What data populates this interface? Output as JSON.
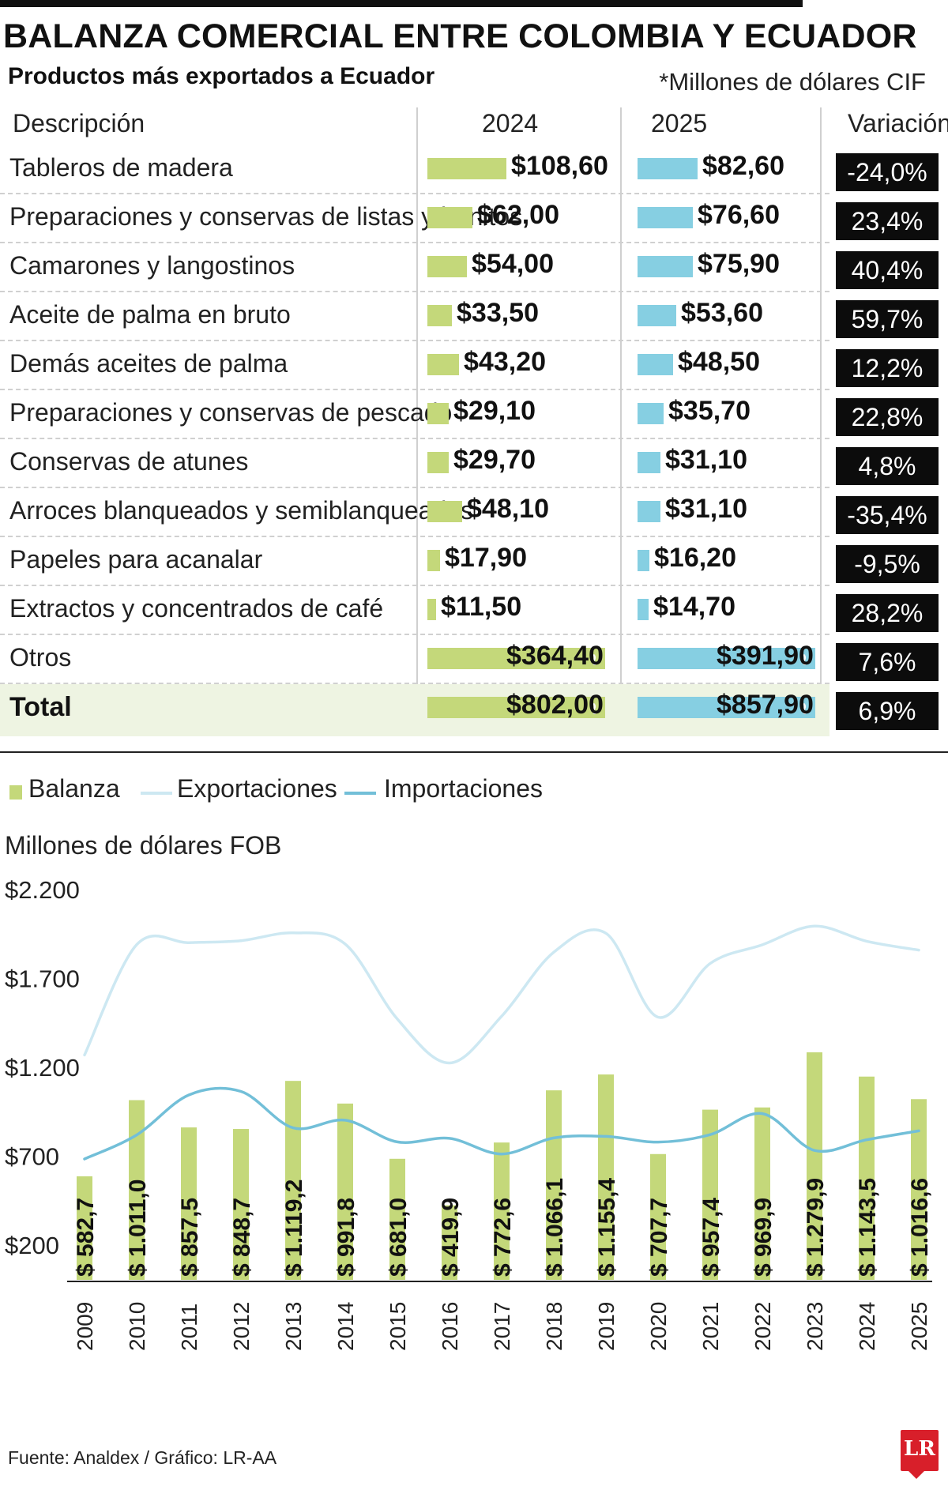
{
  "header": {
    "title": "BALANZA COMERCIAL ENTRE COLOMBIA Y ECUADOR",
    "subtitle": "Productos más exportados a Ecuador",
    "units": "*Millones de dólares CIF"
  },
  "table": {
    "columns": [
      "Descripción",
      "2024",
      "2025",
      "Variación"
    ],
    "rows": [
      {
        "desc": "Tableros de madera",
        "v2024": "$108,60",
        "v2025": "$82,60",
        "var": "-24,0%",
        "n2024": 108.6,
        "n2025": 82.6
      },
      {
        "desc": "Preparaciones y conservas de listas y bonitos",
        "v2024": "$62,00",
        "v2025": "$76,60",
        "var": "23,4%",
        "n2024": 62.0,
        "n2025": 76.6
      },
      {
        "desc": "Camarones y langostinos",
        "v2024": "$54,00",
        "v2025": "$75,90",
        "var": "40,4%",
        "n2024": 54.0,
        "n2025": 75.9
      },
      {
        "desc": "Aceite de palma en bruto",
        "v2024": "$33,50",
        "v2025": "$53,60",
        "var": "59,7%",
        "n2024": 33.5,
        "n2025": 53.6
      },
      {
        "desc": "Demás aceites de palma",
        "v2024": "$43,20",
        "v2025": "$48,50",
        "var": "12,2%",
        "n2024": 43.2,
        "n2025": 48.5
      },
      {
        "desc": "Preparaciones y conservas de pescado",
        "v2024": "$29,10",
        "v2025": "$35,70",
        "var": "22,8%",
        "n2024": 29.1,
        "n2025": 35.7
      },
      {
        "desc": "Conservas de atunes",
        "v2024": "$29,70",
        "v2025": "$31,10",
        "var": "4,8%",
        "n2024": 29.7,
        "n2025": 31.1
      },
      {
        "desc": "Arroces blanqueados y semiblanqueados",
        "v2024": "$48,10",
        "v2025": "$31,10",
        "var": "-35,4%",
        "n2024": 48.1,
        "n2025": 31.1
      },
      {
        "desc": "Papeles para acanalar",
        "v2024": "$17,90",
        "v2025": "$16,20",
        "var": "-9,5%",
        "n2024": 17.9,
        "n2025": 16.2
      },
      {
        "desc": "Extractos y concentrados de café",
        "v2024": "$11,50",
        "v2025": "$14,70",
        "var": "28,2%",
        "n2024": 11.5,
        "n2025": 14.7
      },
      {
        "desc": "Otros",
        "v2024": "$364,40",
        "v2025": "$391,90",
        "var": "7,6%",
        "n2024": 364.4,
        "n2025": 391.9,
        "truncated": true
      },
      {
        "desc": "Total",
        "v2024": "$802,00",
        "v2025": "$857,90",
        "var": "6,9%",
        "n2024": 802.0,
        "n2025": 857.9,
        "truncated": true,
        "total": true
      }
    ]
  },
  "legend": {
    "balanza": "Balanza",
    "exportaciones": "Exportaciones",
    "importaciones": "Importaciones"
  },
  "chart_axis_title": "Millones de dólares FOB",
  "chart_data": {
    "type": "bar+line",
    "title": "Millones de dólares FOB",
    "categories": [
      "2009",
      "2010",
      "2011",
      "2012",
      "2013",
      "2014",
      "2015",
      "2016",
      "2017",
      "2018",
      "2019",
      "2020",
      "2021",
      "2022",
      "2023",
      "2024",
      "2025"
    ],
    "yticks": [
      "$2.200",
      "$1.700",
      "$1.200",
      "$700",
      "$200"
    ],
    "ytick_values": [
      2200,
      1700,
      1200,
      700,
      200
    ],
    "ylim": [
      0,
      2200
    ],
    "series": [
      {
        "name": "Balanza",
        "type": "bar",
        "color": "#c4d87a",
        "values": [
          582.7,
          1011.0,
          857.5,
          848.7,
          1119.2,
          991.8,
          681.0,
          419.9,
          772.6,
          1066.1,
          1155.4,
          707.7,
          957.4,
          969.9,
          1279.9,
          1143.5,
          1016.6
        ],
        "labels": [
          "$ 582,7",
          "$ 1.011,0",
          "$ 857,5",
          "$ 848,7",
          "$ 1.119,2",
          "$ 991,8",
          "$ 681,0",
          "$ 419,9",
          "$ 772,6",
          "$ 1.066,1",
          "$ 1.155,4",
          "$ 707,7",
          "$ 957,4",
          "$ 969,9",
          "$ 1.279,9",
          "$ 1.143,5",
          "$ 1.016,6"
        ]
      },
      {
        "name": "Exportaciones",
        "type": "line",
        "color": "#cde8f2",
        "values": [
          1265,
          1886,
          1897,
          1908,
          1952,
          1889,
          1467,
          1220,
          1483,
          1843,
          1950,
          1478,
          1780,
          1885,
          1990,
          1905,
          1855
        ]
      },
      {
        "name": "Importaciones",
        "type": "line",
        "color": "#72bfd8",
        "values": [
          680,
          815,
          1040,
          1060,
          855,
          898,
          776,
          796,
          708,
          798,
          807,
          775,
          817,
          935,
          728,
          788,
          838
        ]
      }
    ]
  },
  "footer": "Fuente: Analdex / Gráfico: LR-AA",
  "logo": "LR"
}
